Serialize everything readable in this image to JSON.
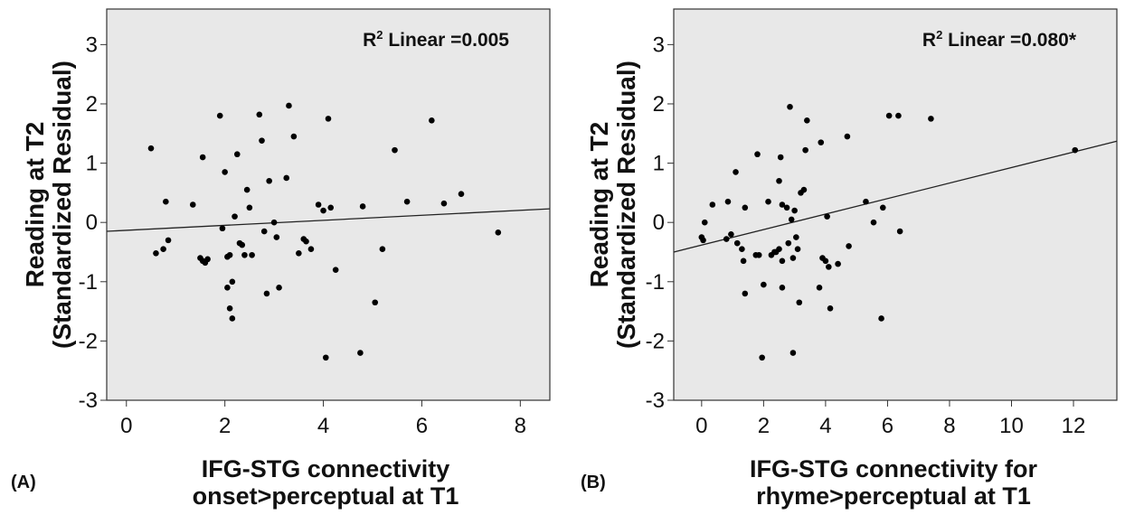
{
  "chart_data": [
    {
      "type": "scatter",
      "panel_label": "(A)",
      "ylabel_line1": "Reading at T2",
      "ylabel_line2": "(Standardized Residual)",
      "xlabel_line1": "IFG-STG connectivity",
      "xlabel_line2": "onset>perceptual at T1",
      "annotation": {
        "prefix": "R",
        "sup": "2",
        "rest": " Linear =0.005"
      },
      "xlim": [
        -0.4,
        8.6
      ],
      "ylim": [
        -3,
        3.6
      ],
      "xticks": [
        0,
        2,
        4,
        6,
        8
      ],
      "yticks": [
        -3,
        -2,
        -1,
        0,
        1,
        2,
        3
      ],
      "fit_line": {
        "x": [
          -0.4,
          8.6
        ],
        "y": [
          -0.15,
          0.23
        ]
      },
      "points": [
        [
          0.5,
          1.25
        ],
        [
          0.6,
          -0.52
        ],
        [
          0.75,
          -0.45
        ],
        [
          0.8,
          0.35
        ],
        [
          0.85,
          -0.3
        ],
        [
          1.35,
          0.3
        ],
        [
          1.5,
          -0.6
        ],
        [
          1.55,
          1.1
        ],
        [
          1.55,
          -0.65
        ],
        [
          1.6,
          -0.68
        ],
        [
          1.65,
          -0.62
        ],
        [
          1.9,
          1.8
        ],
        [
          1.95,
          -0.1
        ],
        [
          2.0,
          0.85
        ],
        [
          2.05,
          -1.1
        ],
        [
          2.05,
          -0.58
        ],
        [
          2.1,
          -0.55
        ],
        [
          2.1,
          -1.45
        ],
        [
          2.15,
          -1.62
        ],
        [
          2.15,
          -1.0
        ],
        [
          2.2,
          0.1
        ],
        [
          2.25,
          1.15
        ],
        [
          2.3,
          -0.35
        ],
        [
          2.35,
          -0.38
        ],
        [
          2.4,
          -0.55
        ],
        [
          2.45,
          0.55
        ],
        [
          2.5,
          0.25
        ],
        [
          2.55,
          -0.55
        ],
        [
          2.7,
          1.82
        ],
        [
          2.75,
          1.38
        ],
        [
          2.8,
          -0.15
        ],
        [
          2.85,
          -1.2
        ],
        [
          2.9,
          0.7
        ],
        [
          3.0,
          0.0
        ],
        [
          3.05,
          -0.25
        ],
        [
          3.1,
          -1.1
        ],
        [
          3.25,
          0.75
        ],
        [
          3.3,
          1.97
        ],
        [
          3.4,
          1.45
        ],
        [
          3.5,
          -0.52
        ],
        [
          3.6,
          -0.28
        ],
        [
          3.65,
          -0.32
        ],
        [
          3.75,
          -0.45
        ],
        [
          3.9,
          0.3
        ],
        [
          4.0,
          0.2
        ],
        [
          4.05,
          -2.28
        ],
        [
          4.1,
          1.75
        ],
        [
          4.15,
          0.25
        ],
        [
          4.25,
          -0.8
        ],
        [
          4.75,
          -2.2
        ],
        [
          4.8,
          0.27
        ],
        [
          5.05,
          -1.35
        ],
        [
          5.2,
          -0.45
        ],
        [
          5.45,
          1.22
        ],
        [
          5.7,
          0.35
        ],
        [
          6.2,
          1.72
        ],
        [
          6.45,
          0.32
        ],
        [
          6.8,
          0.48
        ],
        [
          7.55,
          -0.17
        ]
      ]
    },
    {
      "type": "scatter",
      "panel_label": "(B)",
      "ylabel_line1": "Reading at T2",
      "ylabel_line2": "(Standardized Residual)",
      "xlabel_line1": "IFG-STG connectivity for",
      "xlabel_line2": "rhyme>perceptual at T1",
      "annotation": {
        "prefix": "R",
        "sup": "2",
        "rest": " Linear =0.080*"
      },
      "xlim": [
        -0.9,
        13.4
      ],
      "ylim": [
        -3,
        3.6
      ],
      "xticks": [
        0,
        2,
        4,
        6,
        8,
        10,
        12
      ],
      "yticks": [
        -3,
        -2,
        -1,
        0,
        1,
        2,
        3
      ],
      "fit_line": {
        "x": [
          -0.9,
          13.4
        ],
        "y": [
          -0.5,
          1.37
        ]
      },
      "points": [
        [
          0.0,
          -0.25
        ],
        [
          0.05,
          -0.3
        ],
        [
          0.1,
          0.0
        ],
        [
          0.35,
          0.3
        ],
        [
          0.8,
          -0.28
        ],
        [
          0.85,
          0.35
        ],
        [
          0.95,
          -0.2
        ],
        [
          1.1,
          0.85
        ],
        [
          1.15,
          -0.35
        ],
        [
          1.3,
          -0.45
        ],
        [
          1.35,
          -0.65
        ],
        [
          1.4,
          -1.2
        ],
        [
          1.4,
          0.25
        ],
        [
          1.75,
          -0.55
        ],
        [
          1.8,
          1.15
        ],
        [
          1.85,
          -0.55
        ],
        [
          1.95,
          -2.28
        ],
        [
          2.0,
          -1.05
        ],
        [
          2.15,
          0.35
        ],
        [
          2.25,
          -0.55
        ],
        [
          2.35,
          -0.5
        ],
        [
          2.4,
          -0.5
        ],
        [
          2.5,
          0.7
        ],
        [
          2.5,
          -0.45
        ],
        [
          2.55,
          1.1
        ],
        [
          2.6,
          0.3
        ],
        [
          2.6,
          -0.65
        ],
        [
          2.6,
          -1.1
        ],
        [
          2.75,
          0.25
        ],
        [
          2.8,
          -0.35
        ],
        [
          2.85,
          1.95
        ],
        [
          2.9,
          0.05
        ],
        [
          2.95,
          -2.2
        ],
        [
          2.95,
          -0.6
        ],
        [
          3.0,
          0.2
        ],
        [
          3.05,
          -0.25
        ],
        [
          3.1,
          -0.45
        ],
        [
          3.15,
          -1.35
        ],
        [
          3.2,
          0.5
        ],
        [
          3.3,
          0.55
        ],
        [
          3.35,
          1.22
        ],
        [
          3.4,
          1.72
        ],
        [
          3.8,
          -1.1
        ],
        [
          3.85,
          1.35
        ],
        [
          3.9,
          -0.6
        ],
        [
          4.0,
          -0.65
        ],
        [
          4.05,
          0.1
        ],
        [
          4.1,
          -0.75
        ],
        [
          4.15,
          -1.45
        ],
        [
          4.4,
          -0.7
        ],
        [
          4.7,
          1.45
        ],
        [
          4.75,
          -0.4
        ],
        [
          5.3,
          0.35
        ],
        [
          5.55,
          0.0
        ],
        [
          5.8,
          -1.62
        ],
        [
          5.85,
          0.25
        ],
        [
          6.05,
          1.8
        ],
        [
          6.35,
          1.8
        ],
        [
          6.4,
          -0.15
        ],
        [
          7.4,
          1.75
        ],
        [
          12.05,
          1.22
        ]
      ]
    }
  ]
}
